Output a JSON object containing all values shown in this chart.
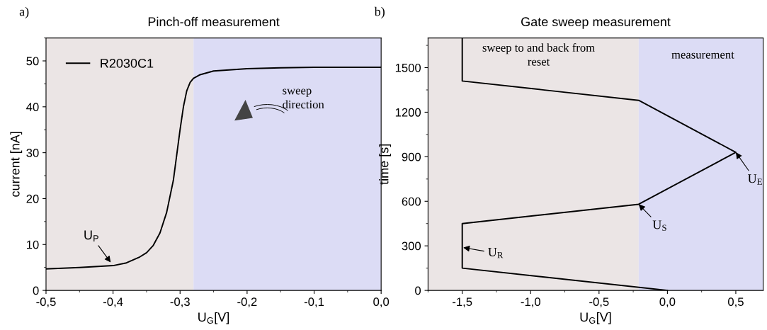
{
  "chart_data": [
    {
      "type": "line",
      "title": "Pinch-off measurement",
      "xlabel": "U$_{G}$[V]",
      "ylabel": "current [nA]",
      "x": [
        -0.5,
        -0.45,
        -0.4,
        -0.38,
        -0.36,
        -0.35,
        -0.34,
        -0.33,
        -0.32,
        -0.31,
        -0.3,
        -0.295,
        -0.29,
        -0.285,
        -0.28,
        -0.27,
        -0.25,
        -0.2,
        -0.15,
        -0.1,
        0.0
      ],
      "series": [
        {
          "name": "R2030C1",
          "color": "#000000",
          "values": [
            4.7,
            5.0,
            5.4,
            6.0,
            7.3,
            8.2,
            9.8,
            12.5,
            17,
            24,
            35,
            40,
            43.5,
            45.3,
            46.2,
            47.0,
            47.8,
            48.3,
            48.5,
            48.6,
            48.6
          ]
        }
      ],
      "xlim": [
        -0.5,
        0.0
      ],
      "ylim": [
        0,
        55
      ],
      "xticks": [
        {
          "value": -0.5,
          "label": "-0,5"
        },
        {
          "value": -0.4,
          "label": "-0,4"
        },
        {
          "value": -0.3,
          "label": "-0,3"
        },
        {
          "value": -0.2,
          "label": "-0,2"
        },
        {
          "value": -0.1,
          "label": "-0,1"
        },
        {
          "value": 0.0,
          "label": "0,0"
        }
      ],
      "yticks": [
        0,
        10,
        20,
        30,
        40,
        50
      ],
      "bands": [
        {
          "axis": "x",
          "from": -0.5,
          "to": -0.28,
          "color": "#ebe5e5"
        },
        {
          "axis": "x",
          "from": -0.28,
          "to": 0.0,
          "color": "#dcdcf5"
        }
      ],
      "annotations": [
        "a)",
        {
          "text": "U$_{P}$",
          "x": -0.4,
          "y": 5.4
        },
        "sweep\ndirection"
      ],
      "legend": "top left",
      "grid": false,
      "marker": "none",
      "line_style": "solid"
    },
    {
      "type": "line",
      "title": "Gate sweep measurement",
      "xlabel": "U$_{G}$[V]",
      "ylabel": "time [s]",
      "x": [
        0.0,
        -1.5,
        -1.5,
        -0.21,
        0.5,
        -0.21,
        -1.5,
        -1.5
      ],
      "series": [
        {
          "color": "#000000",
          "values": [
            0,
            150,
            450,
            580,
            930,
            1280,
            1410,
            1700
          ]
        }
      ],
      "xlim": [
        -1.75,
        0.7
      ],
      "ylim": [
        0,
        1700
      ],
      "xticks": [
        {
          "value": -1.5,
          "label": "-1,5"
        },
        {
          "value": -1.0,
          "label": "-1,0"
        },
        {
          "value": -0.5,
          "label": "-0,5"
        },
        {
          "value": 0.0,
          "label": "0,0"
        },
        {
          "value": 0.5,
          "label": "0,5"
        }
      ],
      "yticks": [
        0,
        300,
        600,
        900,
        1200,
        1500
      ],
      "bands": [
        {
          "axis": "x",
          "from": -1.75,
          "to": -0.21,
          "color": "#ebe5e5"
        },
        {
          "axis": "x",
          "from": -0.21,
          "to": 0.7,
          "color": "#dcdcf5"
        }
      ],
      "annotations": [
        "b)",
        "sweep to and back from\nreset",
        "measurement",
        {
          "text": "U$_{R}$",
          "x": -1.5,
          "y": 290
        },
        {
          "text": "U$_{S}$",
          "x": -0.21,
          "y": 580
        },
        {
          "text": "U$_{E}$",
          "x": 0.5,
          "y": 930
        }
      ],
      "grid": false,
      "marker": "none",
      "line_style": "solid"
    }
  ]
}
